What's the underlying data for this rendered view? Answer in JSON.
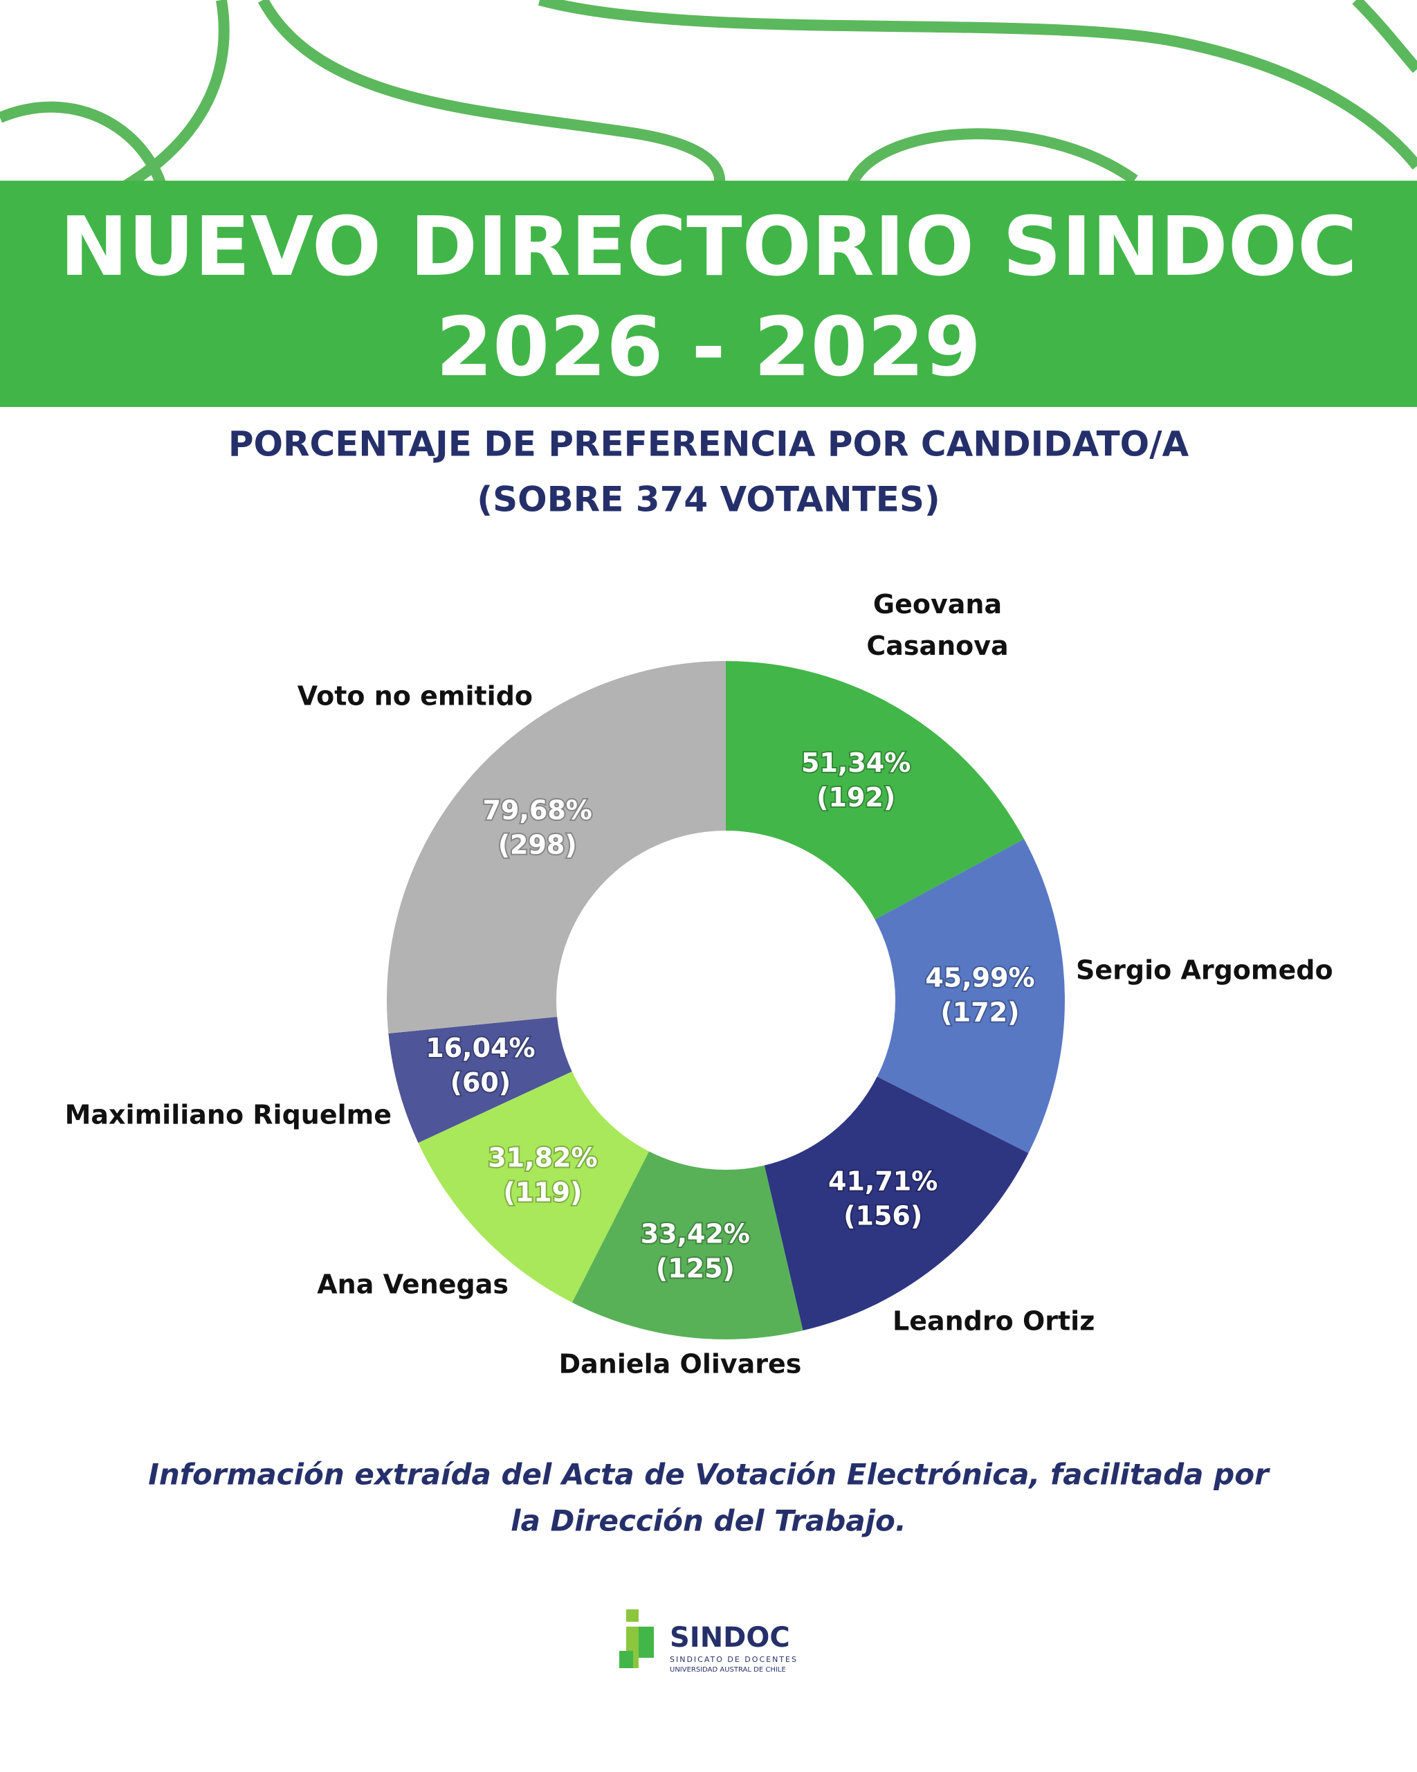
{
  "title": [
    "NUEVO DIRECTORIO SINDOC",
    "2026 - 2029"
  ],
  "chart_data": {
    "type": "donut",
    "title": [
      "PORCENTAJE DE PREFERENCIA POR CANDIDATO/A",
      "(SOBRE 374 VOTANTES)"
    ],
    "categories": [
      "Geovana Casanova",
      "Sergio Argomedo",
      "Leandro Ortiz",
      "Daniela Olivares",
      "Ana Venegas",
      "Maximiliano Riquelme",
      "Voto no emitido"
    ],
    "values": [
      192,
      172,
      156,
      125,
      119,
      60,
      298
    ],
    "value_labels": [
      "(192)",
      "(172)",
      "(156)",
      "(125)",
      "(119)",
      "(60)",
      "(298)"
    ],
    "percent": [
      51.34,
      45.99,
      41.71,
      33.42,
      31.82,
      16.04,
      79.68
    ],
    "percent_labels": [
      "51,34%",
      "45,99%",
      "41,71%",
      "33,42%",
      "31,82%",
      "16,04%",
      "79,68%"
    ],
    "colors": [
      "#43b649",
      "#5878c4",
      "#2e3581",
      "#58b157",
      "#a8e85a",
      "#4e5598",
      "#b3b3b3"
    ]
  },
  "note": [
    "Información extraída del Acta de Votación Electrónica, facilitada por",
    "la Dirección del Trabajo."
  ],
  "logo": {
    "name": "SINDOC",
    "line1": "SINDICATO DE DOCENTES",
    "line2": "UNIVERSIDAD AUSTRAL DE CHILE"
  }
}
